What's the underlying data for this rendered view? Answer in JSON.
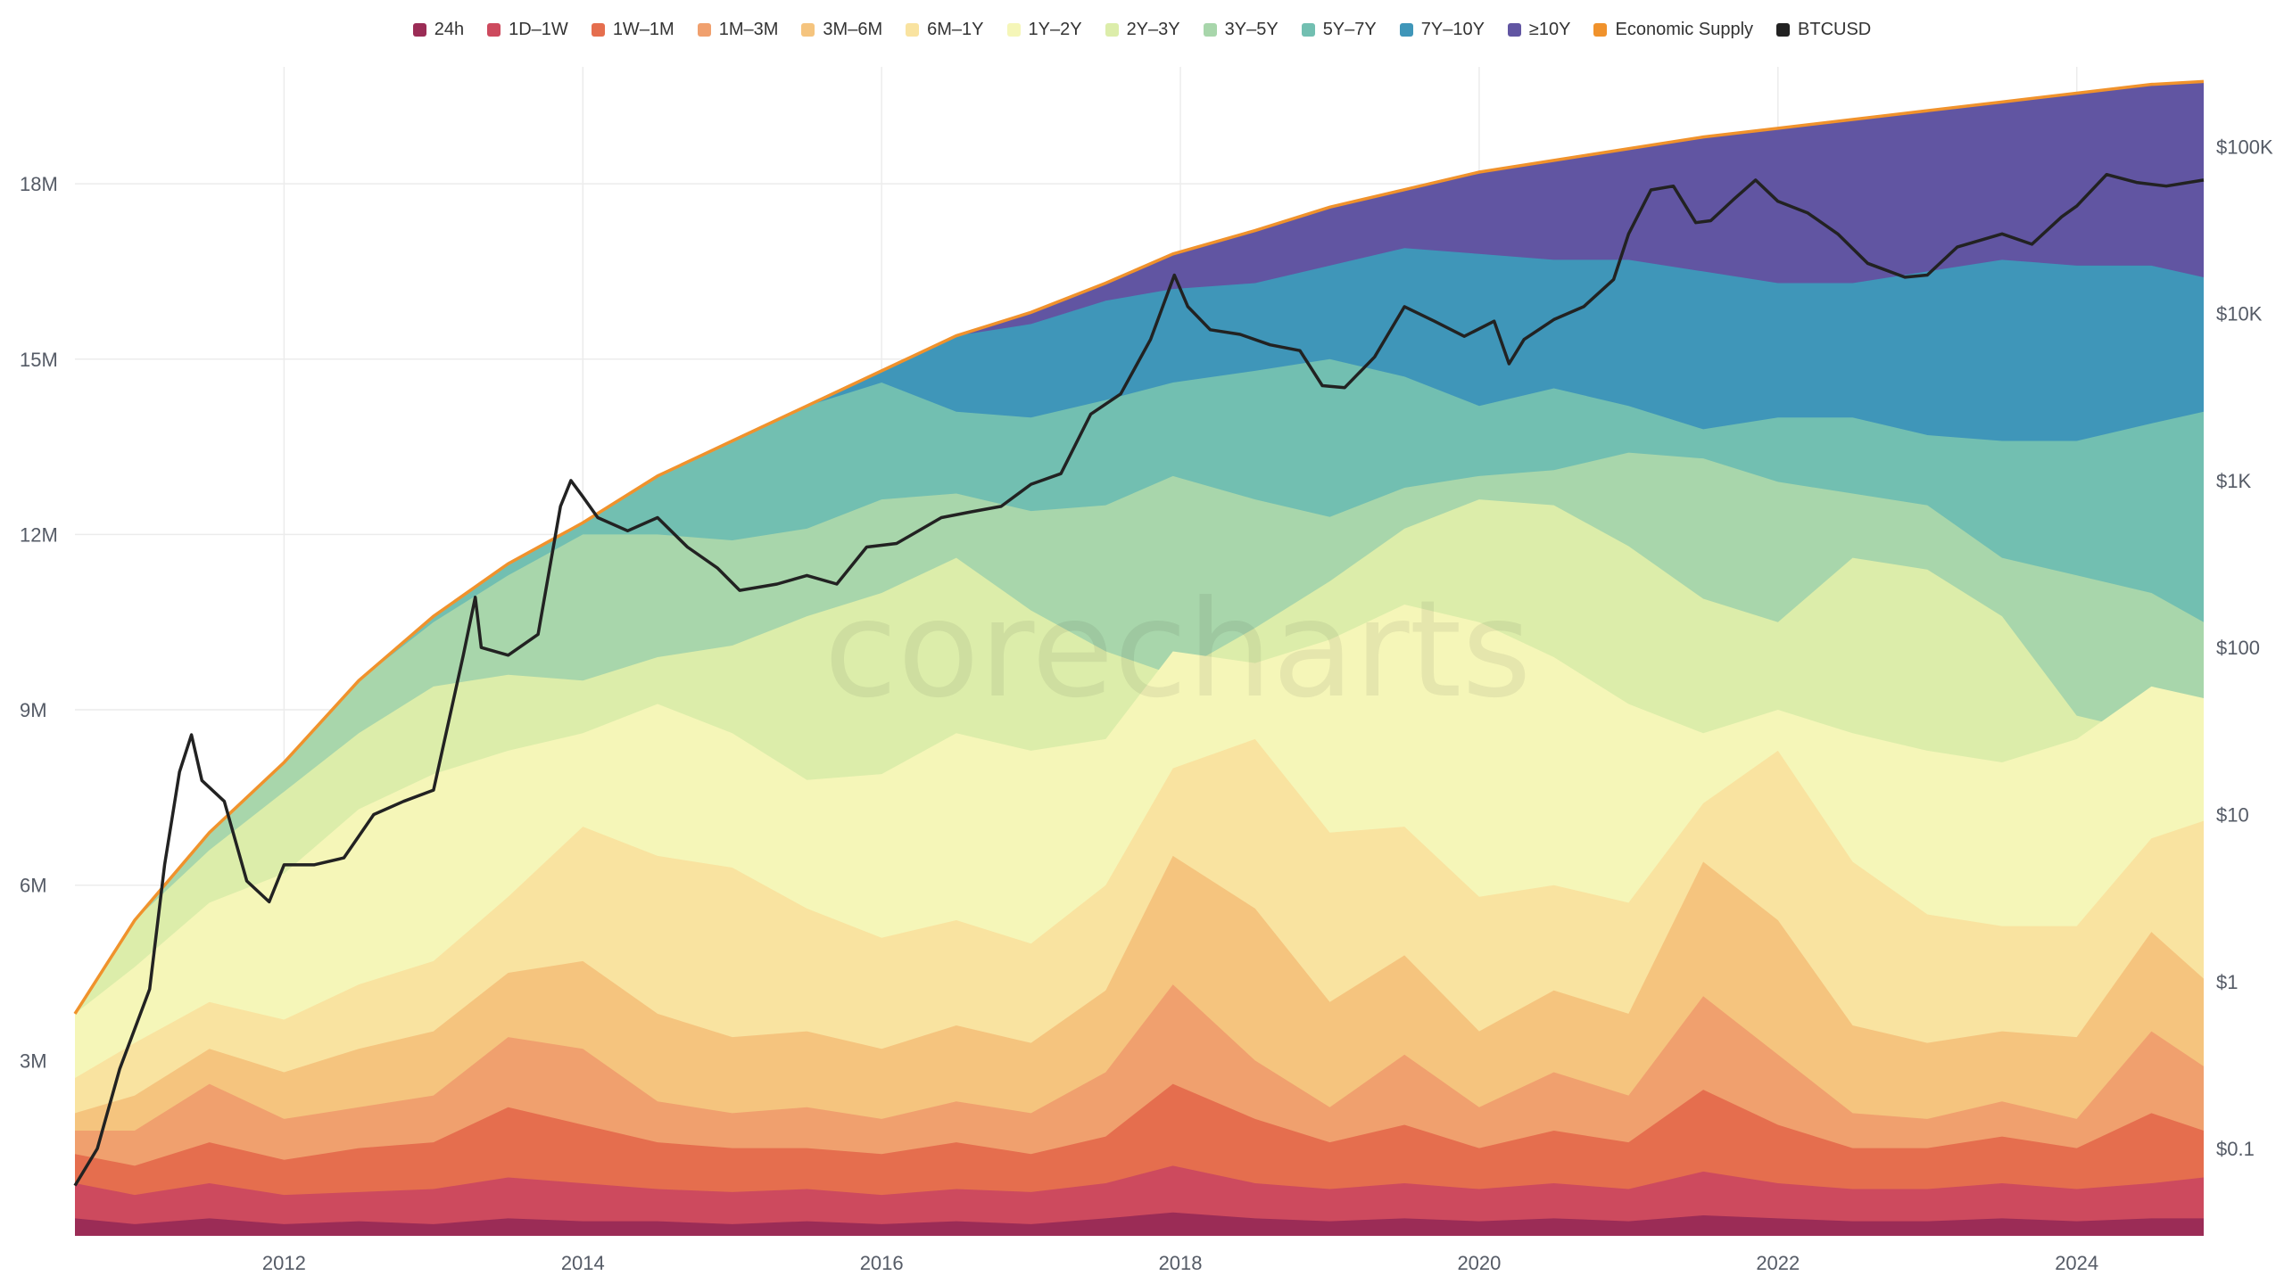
{
  "watermark": "corecharts",
  "chart_data": {
    "type": "area",
    "stacked": true,
    "title": "",
    "legend_position": "top",
    "x_range": [
      2010.6,
      2024.85
    ],
    "y_range": [
      0,
      20000000
    ],
    "y2_range_log": [
      0.03,
      300000
    ],
    "x_ticks": [
      {
        "value": 2012,
        "label": "2012"
      },
      {
        "value": 2014,
        "label": "2014"
      },
      {
        "value": 2016,
        "label": "2016"
      },
      {
        "value": 2018,
        "label": "2018"
      },
      {
        "value": 2020,
        "label": "2020"
      },
      {
        "value": 2022,
        "label": "2022"
      },
      {
        "value": 2024,
        "label": "2024"
      }
    ],
    "y_ticks": [
      {
        "value": 3000000,
        "label": "3M"
      },
      {
        "value": 6000000,
        "label": "6M"
      },
      {
        "value": 9000000,
        "label": "9M"
      },
      {
        "value": 12000000,
        "label": "12M"
      },
      {
        "value": 15000000,
        "label": "15M"
      },
      {
        "value": 18000000,
        "label": "18M"
      }
    ],
    "y2_ticks": [
      {
        "value": 0.1,
        "label": "$0.1"
      },
      {
        "value": 1,
        "label": "$1"
      },
      {
        "value": 10,
        "label": "$10"
      },
      {
        "value": 100,
        "label": "$100"
      },
      {
        "value": 1000,
        "label": "$1K"
      },
      {
        "value": 10000,
        "label": "$10K"
      },
      {
        "value": 100000,
        "label": "$100K"
      }
    ],
    "x": [
      2010.6,
      2011.0,
      2011.5,
      2012.0,
      2012.5,
      2013.0,
      2013.5,
      2014.0,
      2014.5,
      2015.0,
      2015.5,
      2016.0,
      2016.5,
      2017.0,
      2017.5,
      2017.95,
      2018.5,
      2019.0,
      2019.5,
      2020.0,
      2020.5,
      2021.0,
      2021.5,
      2022.0,
      2022.5,
      2023.0,
      2023.5,
      2024.0,
      2024.5,
      2024.85
    ],
    "series": [
      {
        "name": "24h",
        "color": "#9b2c56",
        "cumulative": [
          0.3,
          0.2,
          0.3,
          0.2,
          0.25,
          0.2,
          0.3,
          0.25,
          0.25,
          0.2,
          0.25,
          0.2,
          0.25,
          0.2,
          0.3,
          0.4,
          0.3,
          0.25,
          0.3,
          0.25,
          0.3,
          0.25,
          0.35,
          0.3,
          0.25,
          0.25,
          0.3,
          0.25,
          0.3,
          0.3
        ]
      },
      {
        "name": "1D–1W",
        "color": "#cd4a5e",
        "cumulative": [
          0.9,
          0.7,
          0.9,
          0.7,
          0.75,
          0.8,
          1.0,
          0.9,
          0.8,
          0.75,
          0.8,
          0.7,
          0.8,
          0.75,
          0.9,
          1.2,
          0.9,
          0.8,
          0.9,
          0.8,
          0.9,
          0.8,
          1.1,
          0.9,
          0.8,
          0.8,
          0.9,
          0.8,
          0.9,
          1.0
        ]
      },
      {
        "name": "1W–1M",
        "color": "#e56e4e",
        "cumulative": [
          1.4,
          1.2,
          1.6,
          1.3,
          1.5,
          1.6,
          2.2,
          1.9,
          1.6,
          1.5,
          1.5,
          1.4,
          1.6,
          1.4,
          1.7,
          2.6,
          2.0,
          1.6,
          1.9,
          1.5,
          1.8,
          1.6,
          2.5,
          1.9,
          1.5,
          1.5,
          1.7,
          1.5,
          2.1,
          1.8
        ]
      },
      {
        "name": "1M–3M",
        "color": "#f0a06e",
        "cumulative": [
          1.8,
          1.8,
          2.6,
          2.0,
          2.2,
          2.4,
          3.4,
          3.2,
          2.3,
          2.1,
          2.2,
          2.0,
          2.3,
          2.1,
          2.8,
          4.3,
          3.0,
          2.2,
          3.1,
          2.2,
          2.8,
          2.4,
          4.1,
          3.1,
          2.1,
          2.0,
          2.3,
          2.0,
          3.5,
          2.9
        ]
      },
      {
        "name": "3M–6M",
        "color": "#f5c47e",
        "cumulative": [
          2.1,
          2.4,
          3.2,
          2.8,
          3.2,
          3.5,
          4.5,
          4.7,
          3.8,
          3.4,
          3.5,
          3.2,
          3.6,
          3.3,
          4.2,
          6.5,
          5.6,
          4.0,
          4.8,
          3.5,
          4.2,
          3.8,
          6.4,
          5.4,
          3.6,
          3.3,
          3.5,
          3.4,
          5.2,
          4.4
        ]
      },
      {
        "name": "6M–1Y",
        "color": "#f9e3a0",
        "cumulative": [
          2.7,
          3.3,
          4.0,
          3.7,
          4.3,
          4.7,
          5.8,
          7.0,
          6.5,
          6.3,
          5.6,
          5.1,
          5.4,
          5.0,
          6.0,
          8.0,
          8.5,
          6.9,
          7.0,
          5.8,
          6.0,
          5.7,
          7.4,
          8.3,
          6.4,
          5.5,
          5.3,
          5.3,
          6.8,
          7.1
        ]
      },
      {
        "name": "1Y–2Y",
        "color": "#f5f6b8",
        "cumulative": [
          3.8,
          4.6,
          5.7,
          6.2,
          7.3,
          7.9,
          8.3,
          8.6,
          9.1,
          8.6,
          7.8,
          7.9,
          8.6,
          8.3,
          8.5,
          10.0,
          9.8,
          10.2,
          10.8,
          10.5,
          9.9,
          9.1,
          8.6,
          9.0,
          8.6,
          8.3,
          8.1,
          8.5,
          9.4,
          9.2
        ]
      },
      {
        "name": "2Y–3Y",
        "color": "#dcedaa",
        "cumulative": [
          3.8,
          5.4,
          6.6,
          7.6,
          8.6,
          9.4,
          9.6,
          9.5,
          9.9,
          10.1,
          10.6,
          11.0,
          11.6,
          10.7,
          10.0,
          9.6,
          10.4,
          11.2,
          12.1,
          12.6,
          12.5,
          11.8,
          10.9,
          10.5,
          11.6,
          11.4,
          10.6,
          8.9,
          8.6,
          9.2
        ]
      },
      {
        "name": "3Y–5Y",
        "color": "#a8d6ab",
        "cumulative": [
          3.8,
          5.4,
          6.9,
          8.1,
          9.5,
          10.5,
          11.3,
          12.0,
          12.0,
          11.9,
          12.1,
          12.6,
          12.7,
          12.4,
          12.5,
          13.0,
          12.6,
          12.3,
          12.8,
          13.0,
          13.1,
          13.4,
          13.3,
          12.9,
          12.7,
          12.5,
          11.6,
          11.3,
          11.0,
          10.5
        ]
      },
      {
        "name": "5Y–7Y",
        "color": "#72bfb1",
        "cumulative": [
          3.8,
          5.4,
          6.9,
          8.1,
          9.5,
          10.6,
          11.5,
          12.2,
          13.0,
          13.6,
          14.2,
          14.6,
          14.1,
          14.0,
          14.3,
          14.6,
          14.8,
          15.0,
          14.7,
          14.2,
          14.5,
          14.2,
          13.8,
          14.0,
          14.0,
          13.7,
          13.6,
          13.6,
          13.9,
          14.1
        ]
      },
      {
        "name": "7Y–10Y",
        "color": "#3f96b9",
        "cumulative": [
          3.8,
          5.4,
          6.9,
          8.1,
          9.5,
          10.6,
          11.5,
          12.2,
          13.0,
          13.6,
          14.2,
          14.8,
          15.4,
          15.6,
          16.0,
          16.2,
          16.3,
          16.6,
          16.9,
          16.8,
          16.7,
          16.7,
          16.5,
          16.3,
          16.3,
          16.5,
          16.7,
          16.6,
          16.6,
          16.4
        ]
      },
      {
        "name": "≥10Y",
        "color": "#6155a2",
        "cumulative": [
          3.8,
          5.4,
          6.9,
          8.1,
          9.5,
          10.6,
          11.5,
          12.2,
          13.0,
          13.6,
          14.2,
          14.8,
          15.4,
          15.8,
          16.3,
          16.8,
          17.2,
          17.6,
          17.9,
          18.2,
          18.4,
          18.6,
          18.8,
          18.95,
          19.1,
          19.25,
          19.4,
          19.55,
          19.7,
          19.75
        ]
      }
    ],
    "economic_supply": {
      "name": "Economic Supply",
      "color": "#f0922c",
      "values": [
        3.8,
        5.4,
        6.9,
        8.1,
        9.5,
        10.6,
        11.5,
        12.2,
        13.0,
        13.6,
        14.2,
        14.8,
        15.4,
        15.8,
        16.3,
        16.8,
        17.2,
        17.6,
        17.9,
        18.2,
        18.4,
        18.6,
        18.8,
        18.95,
        19.1,
        19.25,
        19.4,
        19.55,
        19.7,
        19.75
      ],
      "unit": "millions BTC"
    },
    "btcusd": {
      "name": "BTCUSD",
      "color": "#222222",
      "axis": "right-log",
      "x": [
        2010.6,
        2010.75,
        2010.9,
        2011.1,
        2011.2,
        2011.3,
        2011.38,
        2011.45,
        2011.6,
        2011.75,
        2011.9,
        2012.0,
        2012.2,
        2012.4,
        2012.6,
        2012.8,
        2013.0,
        2013.2,
        2013.28,
        2013.32,
        2013.5,
        2013.7,
        2013.85,
        2013.92,
        2014.0,
        2014.1,
        2014.3,
        2014.5,
        2014.7,
        2014.9,
        2015.05,
        2015.3,
        2015.5,
        2015.7,
        2015.9,
        2016.1,
        2016.4,
        2016.6,
        2016.8,
        2017.0,
        2017.2,
        2017.4,
        2017.6,
        2017.8,
        2017.96,
        2018.05,
        2018.2,
        2018.4,
        2018.6,
        2018.8,
        2018.95,
        2019.1,
        2019.3,
        2019.5,
        2019.7,
        2019.9,
        2020.1,
        2020.2,
        2020.3,
        2020.5,
        2020.7,
        2020.9,
        2021.0,
        2021.15,
        2021.3,
        2021.45,
        2021.55,
        2021.7,
        2021.85,
        2022.0,
        2022.2,
        2022.4,
        2022.6,
        2022.85,
        2023.0,
        2023.2,
        2023.5,
        2023.7,
        2023.9,
        2024.0,
        2024.2,
        2024.4,
        2024.6,
        2024.85
      ],
      "y": [
        0.06,
        0.1,
        0.3,
        0.9,
        5,
        18,
        30,
        16,
        12,
        4,
        3,
        5,
        5,
        5.5,
        10,
        12,
        14,
        90,
        200,
        100,
        90,
        120,
        700,
        1000,
        800,
        600,
        500,
        600,
        400,
        300,
        220,
        240,
        270,
        240,
        400,
        420,
        600,
        650,
        700,
        950,
        1100,
        2500,
        3300,
        7000,
        17000,
        11000,
        8000,
        7500,
        6500,
        6000,
        3700,
        3600,
        5500,
        11000,
        9000,
        7300,
        9000,
        5000,
        7000,
        9200,
        11000,
        16000,
        30000,
        55000,
        58000,
        35000,
        36000,
        48000,
        63000,
        47000,
        40000,
        30000,
        20000,
        16500,
        17000,
        25000,
        30000,
        26000,
        38000,
        44000,
        68000,
        61000,
        58000,
        63000
      ]
    }
  }
}
